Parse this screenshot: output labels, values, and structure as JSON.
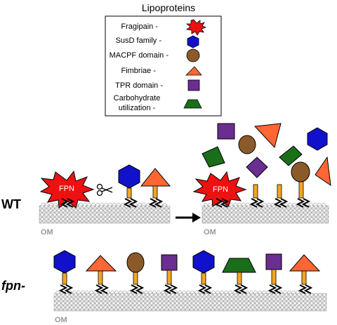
{
  "legend": {
    "title": "Lipoproteins",
    "items": [
      {
        "label": "Fragipain -",
        "shape": "star-icon",
        "color": "#ee1111"
      },
      {
        "label": "SusD family -",
        "shape": "hexagon-icon",
        "color": "#1111cc"
      },
      {
        "label": "MACPF domain -",
        "shape": "circle-icon",
        "color": "#8b5a2b"
      },
      {
        "label": "Fimbriae -",
        "shape": "triangle-icon",
        "color": "#ff6633"
      },
      {
        "label": "TPR domain -",
        "shape": "square-icon",
        "color": "#6a2d90"
      },
      {
        "label": "Carbohydrate utilization -",
        "line1": "Carbohydrate",
        "line2": "utilization -",
        "shape": "trapezoid-icon",
        "color": "#1a6e1a"
      }
    ]
  },
  "panels": {
    "wt": {
      "label": "WT",
      "membrane_label": "OM",
      "enzyme_label": "FPN"
    },
    "fpn": {
      "label": "fpn-",
      "membrane_label": "OM"
    }
  },
  "colors": {
    "stalk": "#f5a623",
    "membrane": "#d6d6d6",
    "outline": "#000000"
  }
}
